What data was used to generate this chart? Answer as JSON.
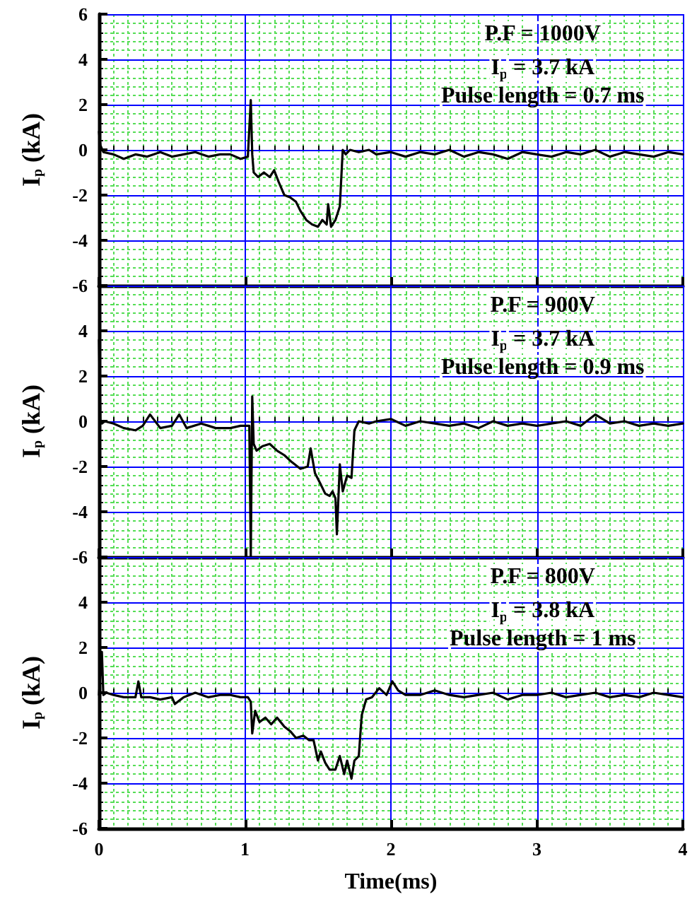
{
  "chart_data": [
    {
      "type": "line",
      "ylabel": "I$_{p}$ (kA)",
      "annotations": [
        "P.F = 1000V",
        "I$_{p}$ = 3.7 kA",
        "Pulse length = 0.7 ms"
      ],
      "x": [
        0,
        0.01,
        0.03,
        0.1,
        0.17,
        0.25,
        0.33,
        0.42,
        0.5,
        0.58,
        0.66,
        0.75,
        0.83,
        0.9,
        0.97,
        1.02,
        1.04,
        1.05,
        1.06,
        1.09,
        1.13,
        1.17,
        1.2,
        1.23,
        1.27,
        1.31,
        1.35,
        1.38,
        1.42,
        1.46,
        1.5,
        1.53,
        1.56,
        1.57,
        1.59,
        1.62,
        1.65,
        1.67,
        1.69,
        1.72,
        1.78,
        1.85,
        1.9,
        2.0,
        2.1,
        2.2,
        2.3,
        2.4,
        2.5,
        2.6,
        2.7,
        2.8,
        2.9,
        3.0,
        3.1,
        3.2,
        3.3,
        3.4,
        3.5,
        3.6,
        3.7,
        3.8,
        3.9,
        4.0
      ],
      "series": [
        {
          "color": "#000000",
          "values": [
            0.8,
            0.2,
            -0.1,
            -0.2,
            -0.4,
            -0.2,
            -0.3,
            -0.1,
            -0.3,
            -0.2,
            -0.1,
            -0.3,
            -0.2,
            -0.2,
            -0.4,
            -0.3,
            2.2,
            -0.2,
            -1.0,
            -1.2,
            -1.0,
            -1.2,
            -0.9,
            -1.4,
            -2.0,
            -2.1,
            -2.3,
            -2.7,
            -3.1,
            -3.3,
            -3.4,
            -3.1,
            -3.3,
            -2.4,
            -3.4,
            -3.1,
            -2.5,
            0,
            -0.2,
            0,
            -0.1,
            0,
            -0.2,
            -0.1,
            -0.3,
            -0.1,
            -0.2,
            0,
            -0.3,
            -0.1,
            -0.2,
            -0.4,
            -0.1,
            -0.2,
            -0.3,
            -0.1,
            -0.2,
            0,
            -0.3,
            -0.1,
            -0.2,
            -0.3,
            -0.1,
            -0.2
          ]
        }
      ],
      "xlim": [
        0,
        4
      ],
      "xticks": [
        0,
        {
          "value": 0.1,
          "label": null
        },
        {
          "value": 0.2,
          "label": null
        },
        {
          "value": 0.3,
          "label": null
        },
        {
          "value": 0.4,
          "label": null
        },
        {
          "value": 0.5,
          "label": null
        },
        {
          "value": 0.6,
          "label": null
        },
        {
          "value": 0.7,
          "label": null
        },
        {
          "value": 0.8,
          "label": null
        },
        {
          "value": 0.9,
          "label": null
        },
        1,
        {
          "value": 1.1,
          "label": null
        },
        {
          "value": 1.2,
          "label": null
        },
        {
          "value": 1.3,
          "label": null
        },
        {
          "value": 1.4,
          "label": null
        },
        {
          "value": 1.5,
          "label": null
        },
        {
          "value": 1.6,
          "label": null
        },
        {
          "value": 1.7,
          "label": null
        },
        {
          "value": 1.8,
          "label": null
        },
        {
          "value": 1.9,
          "label": null
        },
        2,
        {
          "value": 2.1,
          "label": null
        },
        {
          "value": 2.2,
          "label": null
        },
        {
          "value": 2.3,
          "label": null
        },
        {
          "value": 2.4,
          "label": null
        },
        {
          "value": 2.5,
          "label": null
        },
        {
          "value": 2.6,
          "label": null
        },
        {
          "value": 2.7,
          "label": null
        },
        {
          "value": 2.8,
          "label": null
        },
        {
          "value": 2.9,
          "label": null
        },
        3,
        {
          "value": 3.1,
          "label": null
        },
        {
          "value": 3.2,
          "label": null
        },
        {
          "value": 3.3,
          "label": null
        },
        {
          "value": 3.4,
          "label": null
        },
        {
          "value": 3.5,
          "label": null
        },
        {
          "value": 3.6,
          "label": null
        },
        {
          "value": 3.7,
          "label": null
        },
        {
          "value": 3.8,
          "label": null
        },
        {
          "value": 3.9,
          "label": null
        },
        4
      ],
      "ylim": [
        -6,
        6
      ],
      "yticks": [
        -6,
        {
          "value": -5.6,
          "label": null
        },
        {
          "value": -5.2,
          "label": null
        },
        {
          "value": -4.8,
          "label": null
        },
        {
          "value": -4.4,
          "label": null
        },
        -4,
        {
          "value": -3.6,
          "label": null
        },
        {
          "value": -3.2,
          "label": null
        },
        {
          "value": -2.8,
          "label": null
        },
        {
          "value": -2.4,
          "label": null
        },
        -2,
        {
          "value": -1.6,
          "label": null
        },
        {
          "value": -1.2,
          "label": null
        },
        {
          "value": -0.8,
          "label": null
        },
        {
          "value": -0.4,
          "label": null
        },
        0,
        {
          "value": 0.4,
          "label": null
        },
        {
          "value": 0.8,
          "label": null
        },
        {
          "value": 1.2,
          "label": null
        },
        {
          "value": 1.6,
          "label": null
        },
        2,
        {
          "value": 2.4,
          "label": null
        },
        {
          "value": 2.8,
          "label": null
        },
        {
          "value": 3.2,
          "label": null
        },
        {
          "value": 3.6,
          "label": null
        },
        4,
        {
          "value": 4.4,
          "label": null
        },
        {
          "value": 4.8,
          "label": null
        },
        {
          "value": 5.2,
          "label": null
        },
        {
          "value": 5.6,
          "label": null
        },
        6
      ],
      "tick_labels": "y",
      "grid": true,
      "marker": "none",
      "line_style": "solid"
    },
    {
      "type": "line",
      "ylabel": "I$_{p}$ (kA)",
      "annotations": [
        "P.F = 900V",
        "I$_{p}$ = 3.7 kA",
        "Pulse length = 0.9 ms"
      ],
      "x": [
        0,
        0.01,
        0.02,
        0.04,
        0.1,
        0.17,
        0.25,
        0.3,
        0.35,
        0.42,
        0.5,
        0.55,
        0.6,
        0.7,
        0.75,
        0.8,
        0.9,
        0.97,
        1.03,
        1.04,
        1.05,
        1.06,
        1.08,
        1.12,
        1.17,
        1.22,
        1.27,
        1.32,
        1.38,
        1.43,
        1.45,
        1.48,
        1.52,
        1.55,
        1.58,
        1.6,
        1.62,
        1.63,
        1.65,
        1.67,
        1.7,
        1.73,
        1.75,
        1.78,
        1.85,
        1.9,
        2.0,
        2.1,
        2.2,
        2.3,
        2.4,
        2.5,
        2.6,
        2.7,
        2.8,
        2.9,
        3.0,
        3.1,
        3.2,
        3.3,
        3.4,
        3.5,
        3.6,
        3.7,
        3.8,
        3.9,
        4.0
      ],
      "series": [
        {
          "color": "#000000",
          "values": [
            3.6,
            0,
            -0.1,
            0,
            -0.1,
            -0.3,
            -0.4,
            -0.2,
            0.3,
            -0.3,
            -0.2,
            0.3,
            -0.3,
            -0.1,
            -0.2,
            -0.3,
            -0.3,
            -0.2,
            -0.2,
            -6,
            1.1,
            -1.0,
            -1.3,
            -1.1,
            -1.0,
            -1.3,
            -1.5,
            -1.8,
            -2.1,
            -2.0,
            -1.2,
            -2.3,
            -2.8,
            -3.2,
            -3.3,
            -3.1,
            -3.4,
            -5.0,
            -1.9,
            -3.1,
            -2.4,
            -2.5,
            -0.4,
            0,
            -0.1,
            0,
            0.1,
            -0.2,
            0,
            -0.1,
            -0.2,
            -0.1,
            -0.3,
            0,
            -0.2,
            -0.1,
            -0.2,
            -0.1,
            0,
            -0.2,
            0.3,
            -0.1,
            0,
            -0.2,
            -0.1,
            -0.2,
            -0.1
          ]
        }
      ],
      "xlim": [
        0,
        4
      ],
      "xticks": [
        0,
        {
          "value": 0.1,
          "label": null
        },
        {
          "value": 0.2,
          "label": null
        },
        {
          "value": 0.3,
          "label": null
        },
        {
          "value": 0.4,
          "label": null
        },
        {
          "value": 0.5,
          "label": null
        },
        {
          "value": 0.6,
          "label": null
        },
        {
          "value": 0.7,
          "label": null
        },
        {
          "value": 0.8,
          "label": null
        },
        {
          "value": 0.9,
          "label": null
        },
        1,
        {
          "value": 1.1,
          "label": null
        },
        {
          "value": 1.2,
          "label": null
        },
        {
          "value": 1.3,
          "label": null
        },
        {
          "value": 1.4,
          "label": null
        },
        {
          "value": 1.5,
          "label": null
        },
        {
          "value": 1.6,
          "label": null
        },
        {
          "value": 1.7,
          "label": null
        },
        {
          "value": 1.8,
          "label": null
        },
        {
          "value": 1.9,
          "label": null
        },
        2,
        {
          "value": 2.1,
          "label": null
        },
        {
          "value": 2.2,
          "label": null
        },
        {
          "value": 2.3,
          "label": null
        },
        {
          "value": 2.4,
          "label": null
        },
        {
          "value": 2.5,
          "label": null
        },
        {
          "value": 2.6,
          "label": null
        },
        {
          "value": 2.7,
          "label": null
        },
        {
          "value": 2.8,
          "label": null
        },
        {
          "value": 2.9,
          "label": null
        },
        3,
        {
          "value": 3.1,
          "label": null
        },
        {
          "value": 3.2,
          "label": null
        },
        {
          "value": 3.3,
          "label": null
        },
        {
          "value": 3.4,
          "label": null
        },
        {
          "value": 3.5,
          "label": null
        },
        {
          "value": 3.6,
          "label": null
        },
        {
          "value": 3.7,
          "label": null
        },
        {
          "value": 3.8,
          "label": null
        },
        {
          "value": 3.9,
          "label": null
        },
        4
      ],
      "ylim": [
        -6,
        6
      ],
      "yticks": [
        -6,
        {
          "value": -5.6,
          "label": null
        },
        {
          "value": -5.2,
          "label": null
        },
        {
          "value": -4.8,
          "label": null
        },
        {
          "value": -4.4,
          "label": null
        },
        -4,
        {
          "value": -3.6,
          "label": null
        },
        {
          "value": -3.2,
          "label": null
        },
        {
          "value": -2.8,
          "label": null
        },
        {
          "value": -2.4,
          "label": null
        },
        -2,
        {
          "value": -1.6,
          "label": null
        },
        {
          "value": -1.2,
          "label": null
        },
        {
          "value": -0.8,
          "label": null
        },
        {
          "value": -0.4,
          "label": null
        },
        0,
        {
          "value": 0.4,
          "label": null
        },
        {
          "value": 0.8,
          "label": null
        },
        {
          "value": 1.2,
          "label": null
        },
        {
          "value": 1.6,
          "label": null
        },
        2,
        {
          "value": 2.4,
          "label": null
        },
        {
          "value": 2.8,
          "label": null
        },
        {
          "value": 3.2,
          "label": null
        },
        {
          "value": 3.6,
          "label": null
        },
        4,
        {
          "value": 4.4,
          "label": null
        },
        {
          "value": 4.8,
          "label": null
        },
        {
          "value": 5.2,
          "label": null
        },
        {
          "value": 5.6,
          "label": null
        },
        {
          "value": 6,
          "label": null
        }
      ],
      "tick_labels": "y",
      "grid": true,
      "marker": "none",
      "line_style": "solid"
    },
    {
      "type": "line",
      "xlabel": "Time(ms)",
      "ylabel": "I$_{p}$ (kA)",
      "annotations": [
        "P.F = 800V",
        "I$_{p}$ = 3.8 kA",
        "Pulse length = 1 ms"
      ],
      "x": [
        0,
        0.02,
        0.03,
        0.05,
        0.1,
        0.17,
        0.25,
        0.27,
        0.29,
        0.35,
        0.42,
        0.5,
        0.52,
        0.58,
        0.66,
        0.75,
        0.83,
        0.9,
        0.97,
        1.02,
        1.04,
        1.05,
        1.07,
        1.1,
        1.14,
        1.18,
        1.22,
        1.27,
        1.31,
        1.35,
        1.4,
        1.44,
        1.47,
        1.5,
        1.52,
        1.55,
        1.58,
        1.62,
        1.65,
        1.68,
        1.7,
        1.73,
        1.75,
        1.78,
        1.8,
        1.83,
        1.87,
        1.92,
        1.97,
        2.01,
        2.05,
        2.1,
        2.2,
        2.3,
        2.4,
        2.5,
        2.6,
        2.7,
        2.8,
        2.9,
        3.0,
        3.1,
        3.2,
        3.3,
        3.4,
        3.5,
        3.6,
        3.7,
        3.8,
        3.9,
        4.0
      ],
      "series": [
        {
          "color": "#000000",
          "values": [
            -0.1,
            1.8,
            -0.1,
            0,
            -0.1,
            -0.2,
            -0.2,
            0.5,
            -0.2,
            -0.2,
            -0.3,
            -0.2,
            -0.5,
            -0.2,
            0,
            -0.2,
            -0.1,
            -0.1,
            -0.2,
            -0.2,
            -0.4,
            -1.8,
            -0.8,
            -1.3,
            -1.1,
            -1.4,
            -1.1,
            -1.5,
            -1.7,
            -2.0,
            -1.9,
            -2.1,
            -2.1,
            -3.0,
            -2.6,
            -3.1,
            -3.4,
            -3.4,
            -2.8,
            -3.6,
            -3.0,
            -3.8,
            -3.0,
            -2.8,
            -1.0,
            -0.3,
            -0.2,
            0.2,
            -0.1,
            0.5,
            0.1,
            -0.1,
            -0.1,
            0.1,
            -0.1,
            -0.2,
            -0.1,
            0,
            -0.3,
            -0.1,
            -0.1,
            0,
            -0.2,
            -0.1,
            0,
            -0.2,
            -0.1,
            -0.2,
            0,
            -0.1,
            -0.2
          ]
        }
      ],
      "xlim": [
        0,
        4
      ],
      "xticks": [
        0,
        {
          "value": 0.1,
          "label": null
        },
        {
          "value": 0.2,
          "label": null
        },
        {
          "value": 0.3,
          "label": null
        },
        {
          "value": 0.4,
          "label": null
        },
        {
          "value": 0.5,
          "label": null
        },
        {
          "value": 0.6,
          "label": null
        },
        {
          "value": 0.7,
          "label": null
        },
        {
          "value": 0.8,
          "label": null
        },
        {
          "value": 0.9,
          "label": null
        },
        1,
        {
          "value": 1.1,
          "label": null
        },
        {
          "value": 1.2,
          "label": null
        },
        {
          "value": 1.3,
          "label": null
        },
        {
          "value": 1.4,
          "label": null
        },
        {
          "value": 1.5,
          "label": null
        },
        {
          "value": 1.6,
          "label": null
        },
        {
          "value": 1.7,
          "label": null
        },
        {
          "value": 1.8,
          "label": null
        },
        {
          "value": 1.9,
          "label": null
        },
        2,
        {
          "value": 2.1,
          "label": null
        },
        {
          "value": 2.2,
          "label": null
        },
        {
          "value": 2.3,
          "label": null
        },
        {
          "value": 2.4,
          "label": null
        },
        {
          "value": 2.5,
          "label": null
        },
        {
          "value": 2.6,
          "label": null
        },
        {
          "value": 2.7,
          "label": null
        },
        {
          "value": 2.8,
          "label": null
        },
        {
          "value": 2.9,
          "label": null
        },
        3,
        {
          "value": 3.1,
          "label": null
        },
        {
          "value": 3.2,
          "label": null
        },
        {
          "value": 3.3,
          "label": null
        },
        {
          "value": 3.4,
          "label": null
        },
        {
          "value": 3.5,
          "label": null
        },
        {
          "value": 3.6,
          "label": null
        },
        {
          "value": 3.7,
          "label": null
        },
        {
          "value": 3.8,
          "label": null
        },
        {
          "value": 3.9,
          "label": null
        },
        4
      ],
      "ylim": [
        -6,
        6
      ],
      "yticks": [
        -6,
        {
          "value": -5.6,
          "label": null
        },
        {
          "value": -5.2,
          "label": null
        },
        {
          "value": -4.8,
          "label": null
        },
        {
          "value": -4.4,
          "label": null
        },
        -4,
        {
          "value": -3.6,
          "label": null
        },
        {
          "value": -3.2,
          "label": null
        },
        {
          "value": -2.8,
          "label": null
        },
        {
          "value": -2.4,
          "label": null
        },
        -2,
        {
          "value": -1.6,
          "label": null
        },
        {
          "value": -1.2,
          "label": null
        },
        {
          "value": -0.8,
          "label": null
        },
        {
          "value": -0.4,
          "label": null
        },
        0,
        {
          "value": 0.4,
          "label": null
        },
        {
          "value": 0.8,
          "label": null
        },
        {
          "value": 1.2,
          "label": null
        },
        {
          "value": 1.6,
          "label": null
        },
        2,
        {
          "value": 2.4,
          "label": null
        },
        {
          "value": 2.8,
          "label": null
        },
        {
          "value": 3.2,
          "label": null
        },
        {
          "value": 3.6,
          "label": null
        },
        4,
        {
          "value": 4.4,
          "label": null
        },
        {
          "value": 4.8,
          "label": null
        },
        {
          "value": 5.2,
          "label": null
        },
        {
          "value": 5.6,
          "label": null
        },
        {
          "value": 6,
          "label": null
        }
      ],
      "grid": true,
      "marker": "none",
      "line_style": "solid"
    }
  ]
}
